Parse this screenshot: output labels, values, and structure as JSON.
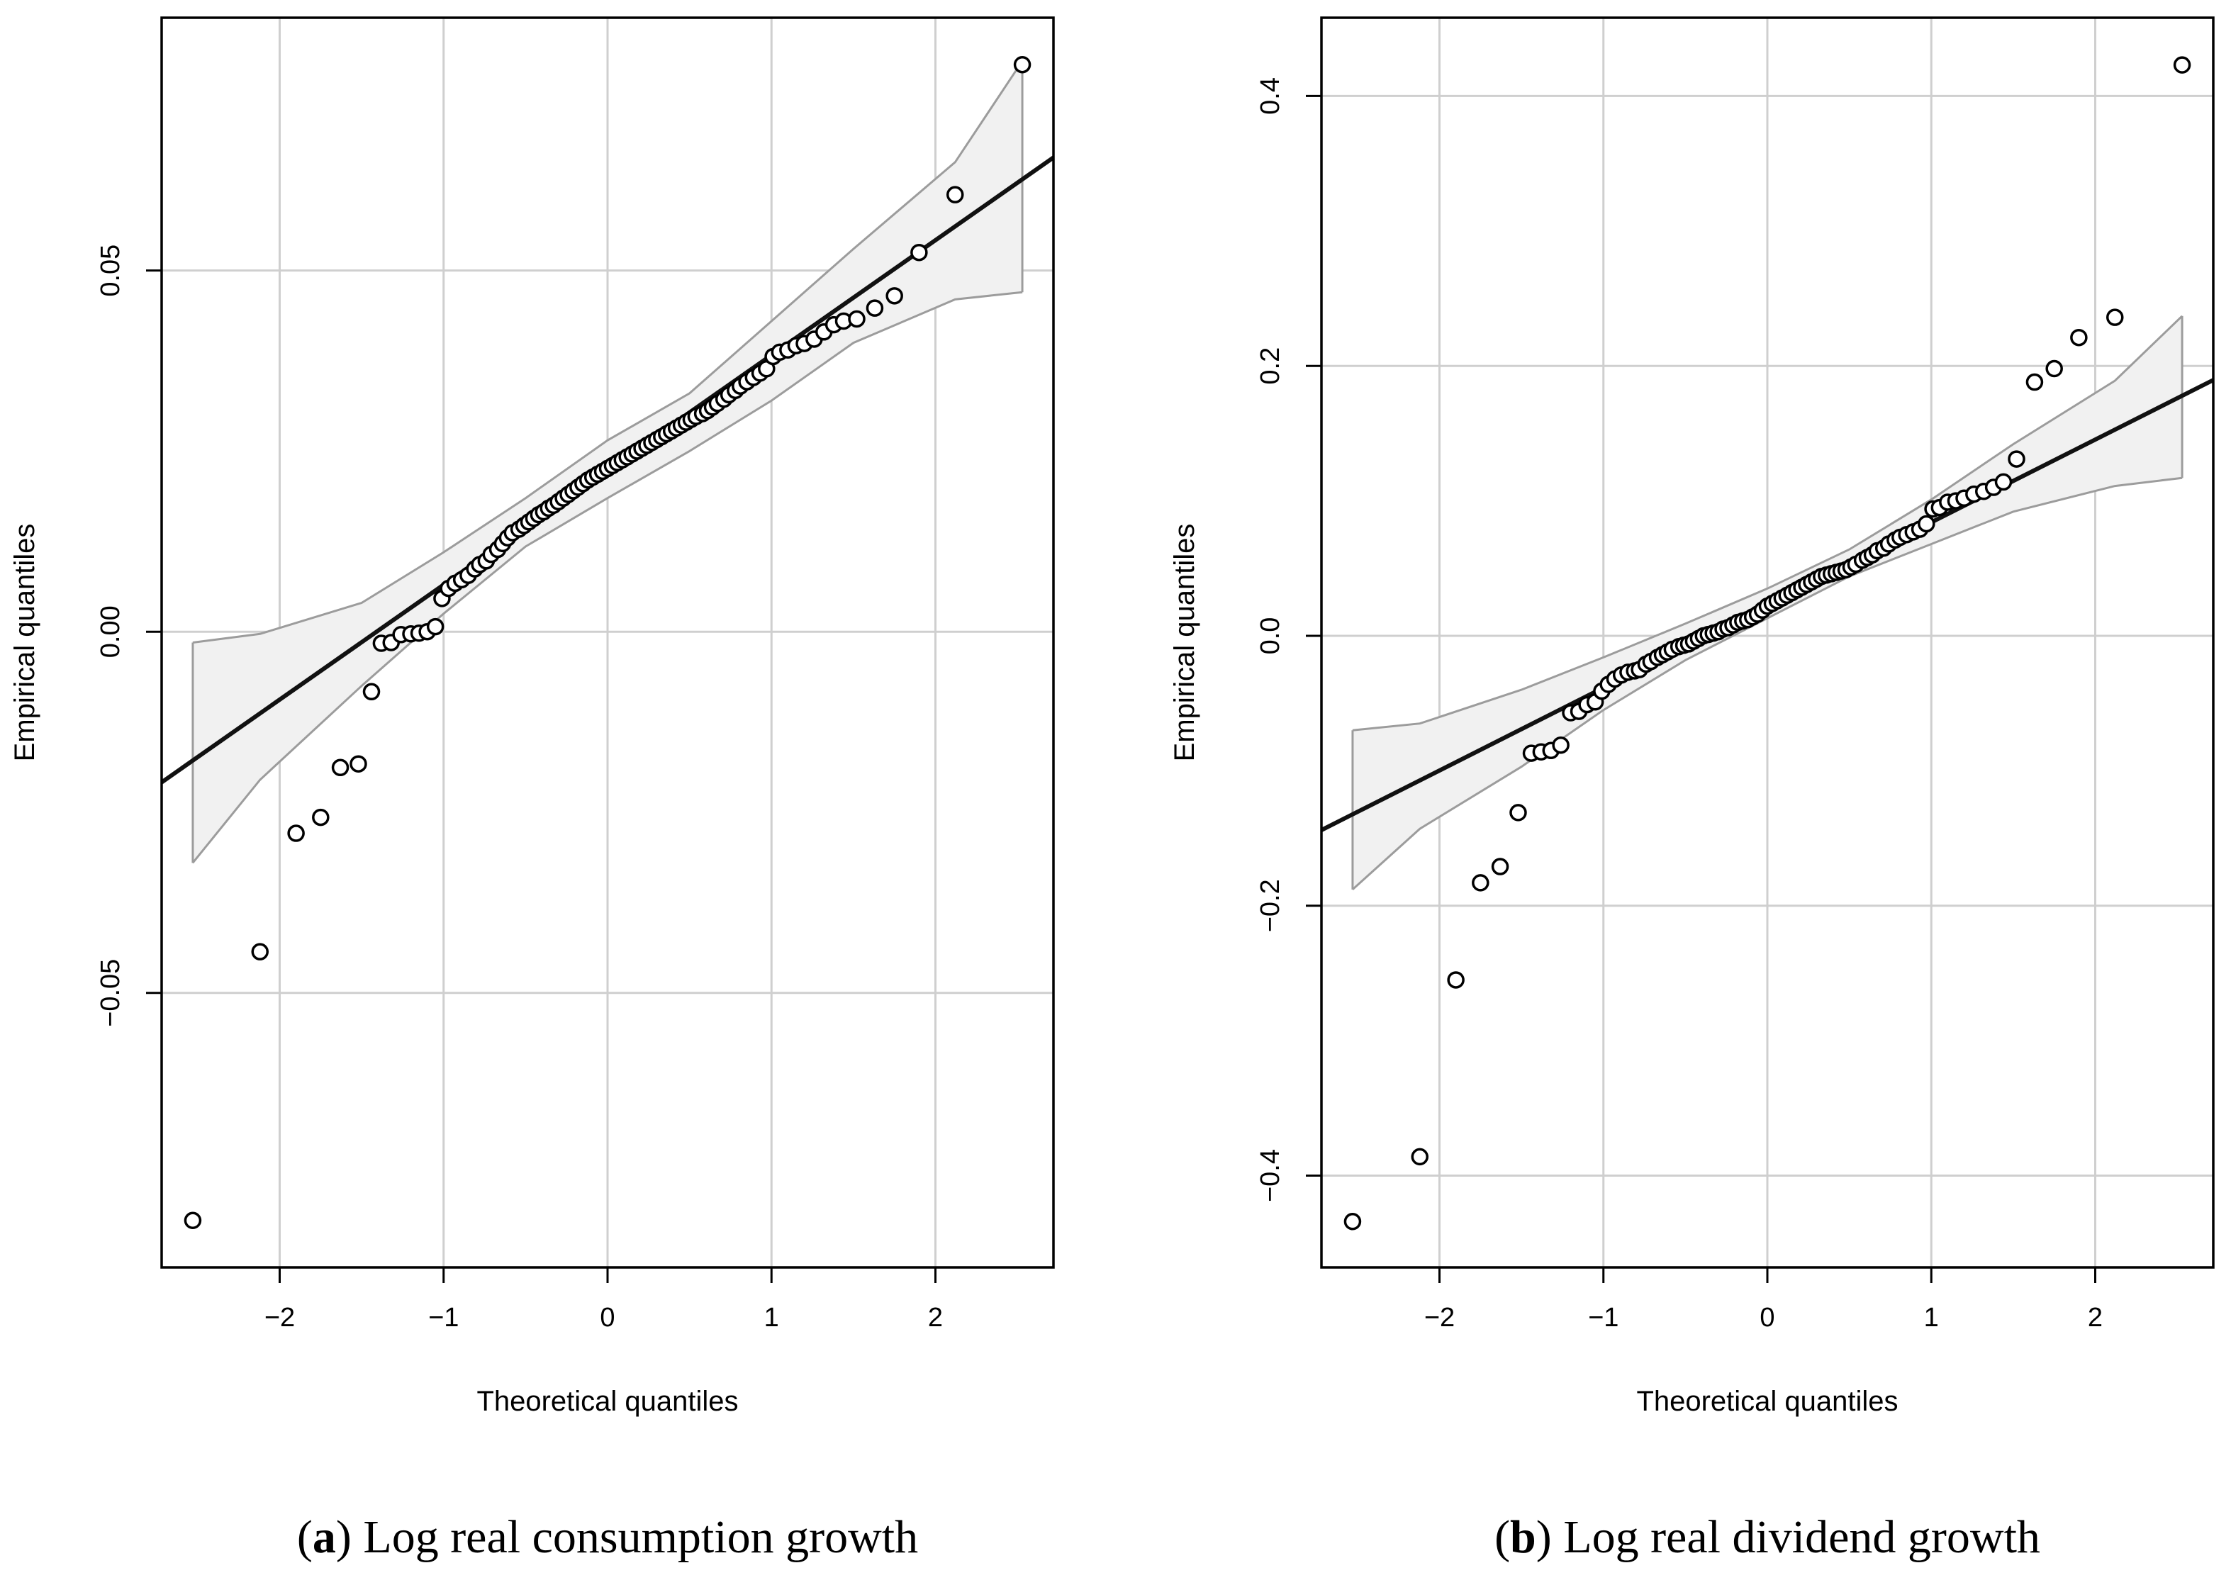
{
  "chart_data": [
    {
      "type": "scatter",
      "subtype": "qq-plot",
      "caption_letter": "a",
      "caption_text": "Log real consumption growth",
      "xlabel": "Theoretical quantiles",
      "ylabel": "Empirical quantiles",
      "xlim": [
        -2.72,
        2.72
      ],
      "ylim": [
        -0.088,
        0.085
      ],
      "xticks": [
        -2,
        -1,
        0,
        1,
        2
      ],
      "xtick_labels": [
        "−2",
        "−1",
        "0",
        "1",
        "2"
      ],
      "yticks": [
        -0.05,
        0.0,
        0.05
      ],
      "ytick_labels": [
        "−0.05",
        "0.00",
        "0.05"
      ],
      "grid": true,
      "reference_line": {
        "intercept": 0.0224,
        "slope": 0.0159
      },
      "confidence_band": {
        "x": [
          -2.53,
          -2.12,
          -1.5,
          -1.0,
          -0.5,
          0.0,
          0.5,
          1.0,
          1.5,
          2.12,
          2.53
        ],
        "lower": [
          -0.032,
          -0.0205,
          -0.0075,
          0.0025,
          0.0118,
          0.0185,
          0.025,
          0.032,
          0.04,
          0.046,
          0.047
        ],
        "upper": [
          -0.0015,
          -0.0003,
          0.004,
          0.011,
          0.0185,
          0.0265,
          0.033,
          0.043,
          0.053,
          0.065,
          0.079
        ]
      },
      "points": [
        [
          -2.53,
          -0.0815
        ],
        [
          -2.12,
          -0.0443
        ],
        [
          -1.9,
          -0.0279
        ],
        [
          -1.75,
          -0.0257
        ],
        [
          -1.63,
          -0.0188
        ],
        [
          -1.52,
          -0.0183
        ],
        [
          -1.44,
          -0.0083
        ],
        [
          -1.38,
          -0.0016
        ],
        [
          -1.32,
          -0.0015
        ],
        [
          -1.26,
          -0.0004
        ],
        [
          -1.2,
          -0.0003
        ],
        [
          -1.15,
          -0.0002
        ],
        [
          -1.1,
          0.0
        ],
        [
          -1.05,
          0.0007
        ],
        [
          -1.01,
          0.0046
        ],
        [
          -0.97,
          0.006
        ],
        [
          -0.93,
          0.0067
        ],
        [
          -0.89,
          0.0072
        ],
        [
          -0.85,
          0.0078
        ],
        [
          -0.81,
          0.0087
        ],
        [
          -0.78,
          0.0093
        ],
        [
          -0.74,
          0.0098
        ],
        [
          -0.71,
          0.0107
        ],
        [
          -0.67,
          0.0114
        ],
        [
          -0.64,
          0.0122
        ],
        [
          -0.61,
          0.013
        ],
        [
          -0.58,
          0.0137
        ],
        [
          -0.54,
          0.0142
        ],
        [
          -0.51,
          0.0147
        ],
        [
          -0.48,
          0.0152
        ],
        [
          -0.45,
          0.0157
        ],
        [
          -0.42,
          0.0162
        ],
        [
          -0.39,
          0.0166
        ],
        [
          -0.36,
          0.0171
        ],
        [
          -0.33,
          0.0175
        ],
        [
          -0.3,
          0.018
        ],
        [
          -0.27,
          0.0185
        ],
        [
          -0.24,
          0.019
        ],
        [
          -0.21,
          0.0195
        ],
        [
          -0.18,
          0.02
        ],
        [
          -0.15,
          0.0205
        ],
        [
          -0.12,
          0.021
        ],
        [
          -0.09,
          0.0214
        ],
        [
          -0.06,
          0.0218
        ],
        [
          -0.03,
          0.0222
        ],
        [
          0.0,
          0.0226
        ],
        [
          0.03,
          0.023
        ],
        [
          0.06,
          0.0234
        ],
        [
          0.09,
          0.0238
        ],
        [
          0.12,
          0.0242
        ],
        [
          0.15,
          0.0246
        ],
        [
          0.18,
          0.025
        ],
        [
          0.21,
          0.0254
        ],
        [
          0.24,
          0.0258
        ],
        [
          0.27,
          0.0262
        ],
        [
          0.3,
          0.0266
        ],
        [
          0.33,
          0.027
        ],
        [
          0.36,
          0.0274
        ],
        [
          0.39,
          0.0278
        ],
        [
          0.42,
          0.0282
        ],
        [
          0.45,
          0.0286
        ],
        [
          0.48,
          0.029
        ],
        [
          0.51,
          0.0294
        ],
        [
          0.54,
          0.0298
        ],
        [
          0.58,
          0.0302
        ],
        [
          0.61,
          0.0306
        ],
        [
          0.64,
          0.0311
        ],
        [
          0.67,
          0.0316
        ],
        [
          0.71,
          0.0322
        ],
        [
          0.74,
          0.0328
        ],
        [
          0.78,
          0.0334
        ],
        [
          0.81,
          0.034
        ],
        [
          0.85,
          0.0346
        ],
        [
          0.89,
          0.0352
        ],
        [
          0.93,
          0.0358
        ],
        [
          0.97,
          0.0364
        ],
        [
          1.01,
          0.0381
        ],
        [
          1.05,
          0.0387
        ],
        [
          1.1,
          0.039
        ],
        [
          1.15,
          0.0396
        ],
        [
          1.2,
          0.0399
        ],
        [
          1.26,
          0.0405
        ],
        [
          1.32,
          0.0415
        ],
        [
          1.38,
          0.0425
        ],
        [
          1.44,
          0.043
        ],
        [
          1.52,
          0.0433
        ],
        [
          1.63,
          0.0448
        ],
        [
          1.75,
          0.0465
        ],
        [
          1.9,
          0.0525
        ],
        [
          2.12,
          0.0605
        ],
        [
          2.53,
          0.0785
        ]
      ]
    },
    {
      "type": "scatter",
      "subtype": "qq-plot",
      "caption_letter": "b",
      "caption_text": "Log real dividend growth",
      "xlabel": "Theoretical quantiles",
      "ylabel": "Empirical quantiles",
      "xlim": [
        -2.72,
        2.72
      ],
      "ylim": [
        -0.468,
        0.458
      ],
      "xticks": [
        -2,
        -1,
        0,
        1,
        2
      ],
      "xtick_labels": [
        "−2",
        "−1",
        "0",
        "1",
        "2"
      ],
      "yticks": [
        -0.4,
        -0.2,
        0.0,
        0.2,
        0.4
      ],
      "ytick_labels": [
        "−0.4",
        "−0.2",
        "0.0",
        "0.2",
        "0.4"
      ],
      "grid": true,
      "reference_line": {
        "intercept": 0.0228,
        "slope": 0.0613
      },
      "confidence_band": {
        "x": [
          -2.53,
          -2.12,
          -1.5,
          -1.0,
          -0.5,
          0.0,
          0.5,
          1.0,
          1.5,
          2.12,
          2.53
        ],
        "lower": [
          -0.188,
          -0.143,
          -0.097,
          -0.055,
          -0.018,
          0.013,
          0.044,
          0.068,
          0.092,
          0.111,
          0.117
        ],
        "upper": [
          -0.07,
          -0.065,
          -0.04,
          -0.016,
          0.009,
          0.035,
          0.064,
          0.101,
          0.142,
          0.189,
          0.237
        ]
      },
      "points": [
        [
          -2.53,
          -0.434
        ],
        [
          -2.12,
          -0.386
        ],
        [
          -1.9,
          -0.255
        ],
        [
          -1.75,
          -0.183
        ],
        [
          -1.63,
          -0.171
        ],
        [
          -1.52,
          -0.131
        ],
        [
          -1.44,
          -0.087
        ],
        [
          -1.38,
          -0.086
        ],
        [
          -1.32,
          -0.085
        ],
        [
          -1.26,
          -0.081
        ],
        [
          -1.2,
          -0.057
        ],
        [
          -1.15,
          -0.056
        ],
        [
          -1.1,
          -0.051
        ],
        [
          -1.05,
          -0.049
        ],
        [
          -1.01,
          -0.041
        ],
        [
          -0.97,
          -0.036
        ],
        [
          -0.93,
          -0.032
        ],
        [
          -0.89,
          -0.029
        ],
        [
          -0.85,
          -0.027
        ],
        [
          -0.81,
          -0.026
        ],
        [
          -0.78,
          -0.025
        ],
        [
          -0.74,
          -0.021
        ],
        [
          -0.71,
          -0.019
        ],
        [
          -0.67,
          -0.016
        ],
        [
          -0.64,
          -0.014
        ],
        [
          -0.61,
          -0.012
        ],
        [
          -0.58,
          -0.01
        ],
        [
          -0.54,
          -0.008
        ],
        [
          -0.51,
          -0.007
        ],
        [
          -0.48,
          -0.006
        ],
        [
          -0.45,
          -0.004
        ],
        [
          -0.42,
          -0.002
        ],
        [
          -0.39,
          0.0
        ],
        [
          -0.36,
          0.001
        ],
        [
          -0.33,
          0.002
        ],
        [
          -0.3,
          0.003
        ],
        [
          -0.27,
          0.005
        ],
        [
          -0.24,
          0.006
        ],
        [
          -0.21,
          0.008
        ],
        [
          -0.18,
          0.01
        ],
        [
          -0.15,
          0.011
        ],
        [
          -0.12,
          0.012
        ],
        [
          -0.09,
          0.014
        ],
        [
          -0.06,
          0.016
        ],
        [
          -0.03,
          0.019
        ],
        [
          0.0,
          0.022
        ],
        [
          0.03,
          0.024
        ],
        [
          0.06,
          0.026
        ],
        [
          0.09,
          0.028
        ],
        [
          0.12,
          0.03
        ],
        [
          0.15,
          0.032
        ],
        [
          0.18,
          0.034
        ],
        [
          0.21,
          0.036
        ],
        [
          0.24,
          0.038
        ],
        [
          0.27,
          0.04
        ],
        [
          0.3,
          0.042
        ],
        [
          0.33,
          0.044
        ],
        [
          0.36,
          0.045
        ],
        [
          0.39,
          0.046
        ],
        [
          0.42,
          0.047
        ],
        [
          0.45,
          0.048
        ],
        [
          0.48,
          0.049
        ],
        [
          0.51,
          0.051
        ],
        [
          0.54,
          0.053
        ],
        [
          0.58,
          0.056
        ],
        [
          0.61,
          0.058
        ],
        [
          0.64,
          0.06
        ],
        [
          0.67,
          0.063
        ],
        [
          0.71,
          0.065
        ],
        [
          0.74,
          0.068
        ],
        [
          0.78,
          0.071
        ],
        [
          0.81,
          0.073
        ],
        [
          0.85,
          0.075
        ],
        [
          0.89,
          0.077
        ],
        [
          0.93,
          0.079
        ],
        [
          0.97,
          0.083
        ],
        [
          1.01,
          0.094
        ],
        [
          1.05,
          0.095
        ],
        [
          1.1,
          0.099
        ],
        [
          1.15,
          0.1
        ],
        [
          1.2,
          0.102
        ],
        [
          1.26,
          0.105
        ],
        [
          1.32,
          0.107
        ],
        [
          1.38,
          0.11
        ],
        [
          1.44,
          0.114
        ],
        [
          1.52,
          0.131
        ],
        [
          1.63,
          0.188
        ],
        [
          1.75,
          0.198
        ],
        [
          1.9,
          0.221
        ],
        [
          2.12,
          0.236
        ],
        [
          2.53,
          0.423
        ]
      ]
    }
  ]
}
